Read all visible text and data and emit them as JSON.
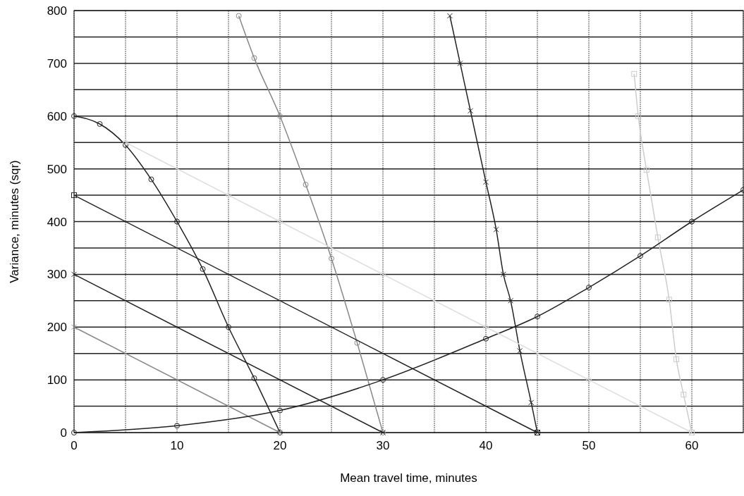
{
  "chart_data": {
    "type": "line",
    "xlabel": "Mean travel time, minutes",
    "ylabel": "Variance, minutes (sqr)",
    "xlim": [
      0,
      65
    ],
    "ylim": [
      0,
      800
    ],
    "xticks": [
      0,
      {
        "value": 5,
        "label": null
      },
      10,
      {
        "value": 15,
        "label": null
      },
      20,
      {
        "value": 25,
        "label": null
      },
      30,
      {
        "value": 35,
        "label": null
      },
      40,
      {
        "value": 45,
        "label": null
      },
      50,
      {
        "value": 55,
        "label": null
      },
      60,
      {
        "value": 65,
        "label": null
      }
    ],
    "yticks": [
      0,
      {
        "value": 50,
        "label": null
      },
      100,
      {
        "value": 150,
        "label": null
      },
      200,
      {
        "value": 250,
        "label": null
      },
      300,
      {
        "value": 350,
        "label": null
      },
      400,
      {
        "value": 450,
        "label": null
      },
      500,
      {
        "value": 550,
        "label": null
      },
      600,
      {
        "value": 650,
        "label": null
      },
      700,
      {
        "value": 750,
        "label": null
      },
      800
    ],
    "grid": true,
    "line_style": "solid",
    "series": [
      {
        "color": "#222222",
        "marker": "circle",
        "x": [
          0,
          2.5,
          5,
          7.5,
          10,
          12.5,
          15,
          17.5,
          20
        ],
        "values": [
          600,
          585,
          545,
          480,
          400,
          310,
          200,
          103,
          0
        ]
      },
      {
        "color": "#888888",
        "marker": "circle",
        "x": [
          16,
          17.5,
          20,
          22.5,
          25,
          27.5,
          30
        ],
        "values": [
          790,
          710,
          600,
          470,
          330,
          170,
          0
        ]
      },
      {
        "color": "#222222",
        "marker": "cross",
        "x": [
          36.5,
          37.5,
          38.5,
          40,
          41,
          41.7,
          42.4,
          43.3,
          44.4,
          45
        ],
        "values": [
          790,
          700,
          610,
          475,
          385,
          300,
          250,
          155,
          57,
          0
        ]
      },
      {
        "color": "#cccccc",
        "marker": "square",
        "x": [
          54.4,
          54.8,
          55.6,
          56.7,
          57.8,
          58.5,
          59.2,
          60
        ],
        "values": [
          680,
          600,
          498,
          370,
          252,
          139,
          72,
          0
        ]
      },
      {
        "color": "#888888",
        "marker": "cross",
        "x": [
          0,
          20
        ],
        "values": [
          200,
          0
        ]
      },
      {
        "color": "#222222",
        "marker": "cross",
        "x": [
          0,
          30
        ],
        "values": [
          300,
          0
        ]
      },
      {
        "color": "#222222",
        "marker": "square",
        "x": [
          0,
          45
        ],
        "values": [
          450,
          0
        ]
      },
      {
        "color": "#222222",
        "marker": "circle",
        "x": [
          0,
          10,
          20,
          30,
          40,
          45,
          50,
          55,
          60,
          65
        ],
        "values": [
          0,
          13,
          42,
          100,
          178,
          220,
          275,
          335,
          400,
          460
        ]
      },
      {
        "color": "#dddddd",
        "marker": "circle",
        "x": [
          5,
          15,
          20,
          30,
          40,
          50,
          60
        ],
        "values": [
          550,
          450,
          400,
          300,
          200,
          100,
          0
        ]
      }
    ]
  }
}
